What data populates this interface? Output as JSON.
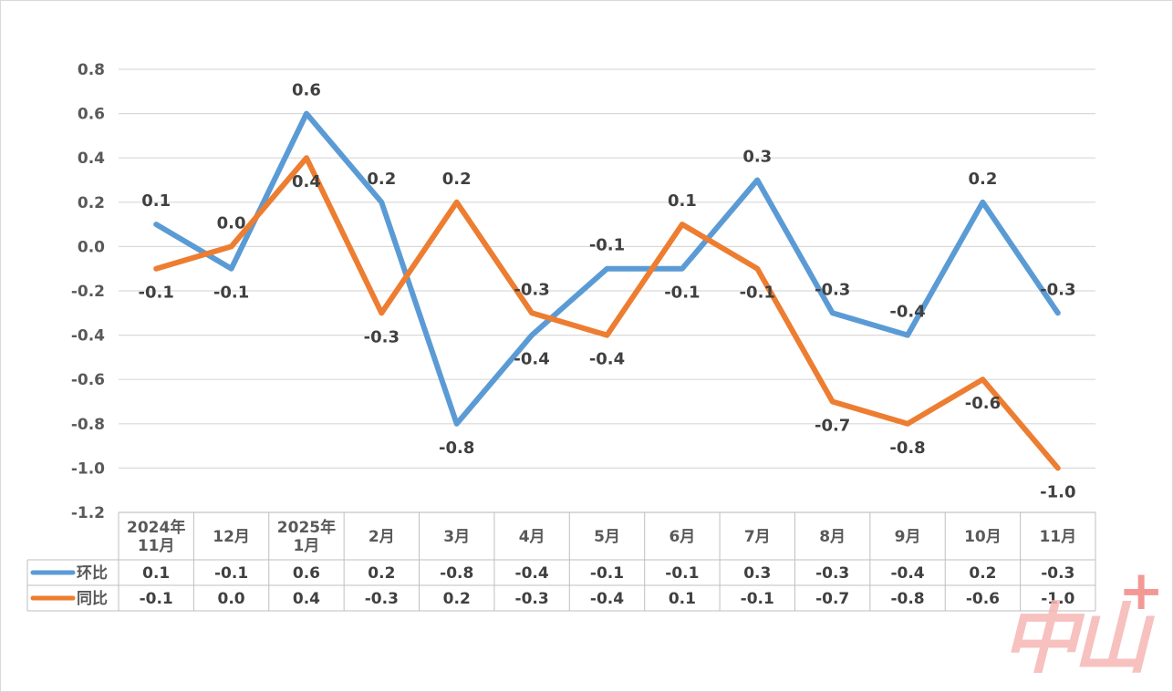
{
  "chart_data": {
    "type": "line",
    "categories": [
      [
        "2024年",
        "11月"
      ],
      [
        "12月"
      ],
      [
        "2025年",
        "1月"
      ],
      [
        "2月"
      ],
      [
        "3月"
      ],
      [
        "4月"
      ],
      [
        "5月"
      ],
      [
        "6月"
      ],
      [
        "7月"
      ],
      [
        "8月"
      ],
      [
        "9月"
      ],
      [
        "10月"
      ],
      [
        "11月"
      ]
    ],
    "series": [
      {
        "name": "环比",
        "color": "#5B9BD5",
        "values": [
          0.1,
          -0.1,
          0.6,
          0.2,
          -0.8,
          -0.4,
          -0.1,
          -0.1,
          0.3,
          -0.3,
          -0.4,
          0.2,
          -0.3
        ],
        "labels": [
          "0.1",
          "-0.1",
          "0.6",
          "0.2",
          "-0.8",
          "-0.4",
          "-0.1",
          "-0.1",
          "0.3",
          "-0.3",
          "-0.4",
          "0.2",
          "-0.3"
        ]
      },
      {
        "name": "同比",
        "color": "#ED7D31",
        "values": [
          -0.1,
          0.0,
          0.4,
          -0.3,
          0.2,
          -0.3,
          -0.4,
          0.1,
          -0.1,
          -0.7,
          -0.8,
          -0.6,
          -1.0
        ],
        "labels": [
          "-0.1",
          "0.0",
          "0.4",
          "-0.3",
          "0.2",
          "-0.3",
          "-0.4",
          "0.1",
          "-0.1",
          "-0.7",
          "-0.8",
          "-0.6",
          "-1.0"
        ]
      }
    ],
    "y_ticks": [
      "0.8",
      "0.6",
      "0.4",
      "0.2",
      "0.0",
      "-0.2",
      "-0.4",
      "-0.6",
      "-0.8",
      "-1.0",
      "-1.2"
    ],
    "ylim": [
      -1.2,
      0.8
    ],
    "grid": true,
    "data_table": true
  },
  "watermark": {
    "text": "中山",
    "plus": "+",
    "color": "#F4B6B4"
  }
}
